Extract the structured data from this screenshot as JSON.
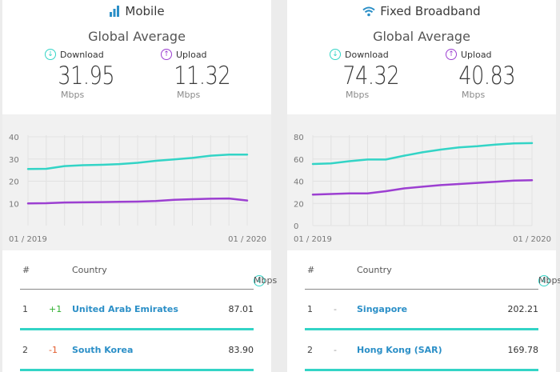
{
  "colors": {
    "download": "#33d4c6",
    "upload": "#9c3fd1",
    "country_link": "#2b8fc7",
    "change_up": "#2eaf2e",
    "change_down": "#e35a2a"
  },
  "panels": [
    {
      "id": "mobile",
      "icon": "signal-bars-icon",
      "title": "Mobile",
      "subtitle": "Global Average",
      "download": {
        "label": "Download",
        "value": "31.95",
        "unit": "Mbps"
      },
      "upload": {
        "label": "Upload",
        "value": "11.32",
        "unit": "Mbps"
      },
      "table": {
        "headers": {
          "rank": "#",
          "country": "Country",
          "speed": "Mbps"
        },
        "rows": [
          {
            "rank": "1",
            "change": "+1",
            "country": "United Arab Emirates",
            "speed": "87.01"
          },
          {
            "rank": "2",
            "change": "-1",
            "country": "South Korea",
            "speed": "83.90"
          }
        ]
      }
    },
    {
      "id": "fixed",
      "icon": "wifi-icon",
      "title": "Fixed Broadband",
      "subtitle": "Global Average",
      "download": {
        "label": "Download",
        "value": "74.32",
        "unit": "Mbps"
      },
      "upload": {
        "label": "Upload",
        "value": "40.83",
        "unit": "Mbps"
      },
      "table": {
        "headers": {
          "rank": "#",
          "country": "Country",
          "speed": "Mbps"
        },
        "rows": [
          {
            "rank": "1",
            "change": "-",
            "country": "Singapore",
            "speed": "202.21"
          },
          {
            "rank": "2",
            "change": "-",
            "country": "Hong Kong (SAR)",
            "speed": "169.78"
          }
        ]
      }
    }
  ],
  "chart_data": [
    {
      "type": "line",
      "x": [
        "01/2019",
        "02/2019",
        "03/2019",
        "04/2019",
        "05/2019",
        "06/2019",
        "07/2019",
        "08/2019",
        "09/2019",
        "10/2019",
        "11/2019",
        "12/2019",
        "01/2020"
      ],
      "x_tick_labels": [
        "01 / 2019",
        "01 / 2020"
      ],
      "yticks": [
        10,
        20,
        30,
        40
      ],
      "ylim": [
        0,
        40
      ],
      "grid": true,
      "series": [
        {
          "key": "download",
          "values": [
            25.5,
            25.6,
            26.8,
            27.2,
            27.4,
            27.7,
            28.3,
            29.2,
            29.8,
            30.5,
            31.5,
            32.0,
            31.95
          ]
        },
        {
          "key": "upload",
          "values": [
            10.0,
            10.1,
            10.4,
            10.5,
            10.6,
            10.7,
            10.8,
            11.1,
            11.6,
            11.9,
            12.1,
            12.2,
            11.32
          ]
        }
      ]
    },
    {
      "type": "line",
      "x": [
        "01/2019",
        "02/2019",
        "03/2019",
        "04/2019",
        "05/2019",
        "06/2019",
        "07/2019",
        "08/2019",
        "09/2019",
        "10/2019",
        "11/2019",
        "12/2019",
        "01/2020"
      ],
      "x_tick_labels": [
        "01 / 2019",
        "01 / 2020"
      ],
      "yticks": [
        0,
        20,
        40,
        60,
        80
      ],
      "ylim": [
        0,
        80
      ],
      "grid": true,
      "series": [
        {
          "key": "download",
          "values": [
            55.5,
            56.0,
            58.0,
            59.5,
            59.5,
            63.0,
            66.0,
            68.5,
            70.5,
            71.5,
            73.0,
            74.0,
            74.32
          ]
        },
        {
          "key": "upload",
          "values": [
            28.0,
            28.5,
            29.0,
            29.0,
            31.0,
            33.5,
            35.0,
            36.5,
            37.5,
            38.5,
            39.5,
            40.5,
            40.83
          ]
        }
      ]
    }
  ]
}
